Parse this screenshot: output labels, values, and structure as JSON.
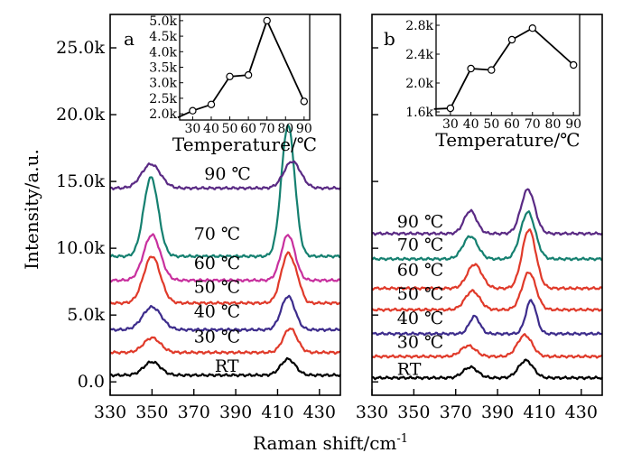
{
  "chart_data": {
    "type": "line",
    "y_axis_label": "Intensity/a.u.",
    "x_axis_label": "Raman shift/cm",
    "x_axis_label_superscript": "-1",
    "y_ticks": [
      "0.0",
      "5.0k",
      "10.0k",
      "15.0k",
      "20.0k",
      "25.0k"
    ],
    "y_tick_values": [
      0,
      5000,
      10000,
      15000,
      20000,
      25000
    ],
    "ylim": [
      -1000,
      27500
    ],
    "panels": [
      {
        "letter": "a",
        "xlim": [
          330,
          440
        ],
        "x_ticks": [
          "330",
          "350",
          "370",
          "390",
          "410",
          "430"
        ],
        "x_tick_values": [
          330,
          350,
          370,
          390,
          410,
          430
        ],
        "series": [
          {
            "name": "RT",
            "color": "#000000",
            "baseline": 500,
            "peaks": [
              [
                350,
                1000,
                4
              ],
              [
                415,
                1200,
                3.5
              ]
            ]
          },
          {
            "name": "30 ℃",
            "color": "#e03a2a",
            "baseline": 2200,
            "peaks": [
              [
                350,
                1100,
                4
              ],
              [
                416,
                1800,
                3.3
              ]
            ]
          },
          {
            "name": "40 ℃",
            "color": "#3d2c8c",
            "baseline": 3900,
            "peaks": [
              [
                350,
                1700,
                4.5
              ],
              [
                415,
                2500,
                3.3
              ]
            ]
          },
          {
            "name": "50 ℃",
            "color": "#e03a2a",
            "baseline": 5900,
            "peaks": [
              [
                350,
                3500,
                4
              ],
              [
                415,
                3700,
                3.3
              ],
              [
                420,
                700,
                2
              ]
            ]
          },
          {
            "name": "60 ℃",
            "color": "#c8309e",
            "baseline": 7600,
            "peaks": [
              [
                350,
                3400,
                4
              ],
              [
                415,
                3400,
                3.3
              ]
            ]
          },
          {
            "name": "70 ℃",
            "color": "#158070",
            "baseline": 9400,
            "peaks": [
              [
                349.5,
                5900,
                3.5
              ],
              [
                415,
                9800,
                3.2
              ]
            ]
          },
          {
            "name": "90 ℃",
            "color": "#5a2a84",
            "baseline": 14500,
            "peaks": [
              [
                349.5,
                1800,
                4.5
              ],
              [
                417,
                2000,
                4
              ]
            ]
          }
        ],
        "label_positions": [
          [
            380,
            740
          ],
          [
            370,
            2950
          ],
          [
            370,
            4850
          ],
          [
            370,
            6650
          ],
          [
            370,
            8450
          ],
          [
            370,
            10650
          ],
          [
            375,
            15150
          ]
        ],
        "inset": {
          "xlabel": "Temperature/℃",
          "x": [
            30,
            40,
            50,
            60,
            70,
            90
          ],
          "y": [
            2100,
            2300,
            3200,
            3250,
            5000,
            2400
          ],
          "start_x": 22,
          "start_y": 1880,
          "xlim": [
            23,
            93
          ],
          "ylim": [
            1800,
            5200
          ],
          "x_ticks": [
            "30",
            "40",
            "50",
            "60",
            "70",
            "80",
            "90"
          ],
          "x_tick_values": [
            30,
            40,
            50,
            60,
            70,
            80,
            90
          ],
          "y_ticks": [
            "2.0k",
            "2.5k",
            "3.0k",
            "3.5k",
            "4.0k",
            "4.5k",
            "5.0k"
          ],
          "y_tick_values": [
            2000,
            2500,
            3000,
            3500,
            4000,
            4500,
            5000
          ]
        }
      },
      {
        "letter": "b",
        "xlim": [
          330,
          440
        ],
        "x_ticks": [
          "330",
          "350",
          "370",
          "390",
          "410",
          "430"
        ],
        "x_tick_values": [
          330,
          350,
          370,
          390,
          410,
          430
        ],
        "series": [
          {
            "name": "RT",
            "color": "#000000",
            "baseline": 300,
            "peaks": [
              [
                377,
                800,
                3.5
              ],
              [
                403.5,
                1300,
                3.5
              ]
            ]
          },
          {
            "name": "30 ℃",
            "color": "#e03a2a",
            "baseline": 1900,
            "peaks": [
              [
                376,
                800,
                3.5
              ],
              [
                403,
                1600,
                3.5
              ]
            ]
          },
          {
            "name": "40 ℃",
            "color": "#3d2c8c",
            "baseline": 3600,
            "peaks": [
              [
                379,
                1300,
                2.5
              ],
              [
                406,
                2500,
                2.5
              ]
            ]
          },
          {
            "name": "50 ℃",
            "color": "#e03a2a",
            "baseline": 5400,
            "peaks": [
              [
                378,
                1400,
                3.5
              ],
              [
                405,
                2800,
                3.3
              ]
            ]
          },
          {
            "name": "60 ℃",
            "color": "#e03a2a",
            "baseline": 7000,
            "peaks": [
              [
                379,
                1800,
                3.5
              ],
              [
                405,
                4400,
                3.3
              ]
            ]
          },
          {
            "name": "70 ℃",
            "color": "#158070",
            "baseline": 9200,
            "peaks": [
              [
                377,
                1700,
                3.5
              ],
              [
                404.5,
                3500,
                3.5
              ]
            ]
          },
          {
            "name": "90 ℃",
            "color": "#5a2a84",
            "baseline": 11100,
            "peaks": [
              [
                377,
                1700,
                3
              ],
              [
                404.5,
                3300,
                3.3
              ]
            ]
          }
        ],
        "label_positions": [
          [
            342,
            520
          ],
          [
            342,
            2550
          ],
          [
            342,
            4350
          ],
          [
            342,
            6150
          ],
          [
            342,
            7950
          ],
          [
            342,
            9850
          ],
          [
            342,
            11550
          ]
        ],
        "inset": {
          "xlabel": "Temperature/℃",
          "x": [
            30,
            40,
            50,
            60,
            70,
            90
          ],
          "y": [
            1650,
            2200,
            2180,
            2600,
            2760,
            2250
          ],
          "start_x": 22,
          "start_y": 1640,
          "xlim": [
            23,
            93
          ],
          "ylim": [
            1550,
            2950
          ],
          "x_ticks": [
            "30",
            "40",
            "50",
            "60",
            "70",
            "80",
            "90"
          ],
          "x_tick_values": [
            30,
            40,
            50,
            60,
            70,
            80,
            90
          ],
          "y_ticks": [
            "1.6k",
            "2.0k",
            "2.4k",
            "2.8k"
          ],
          "y_tick_values": [
            1600,
            2000,
            2400,
            2800
          ]
        }
      }
    ]
  }
}
